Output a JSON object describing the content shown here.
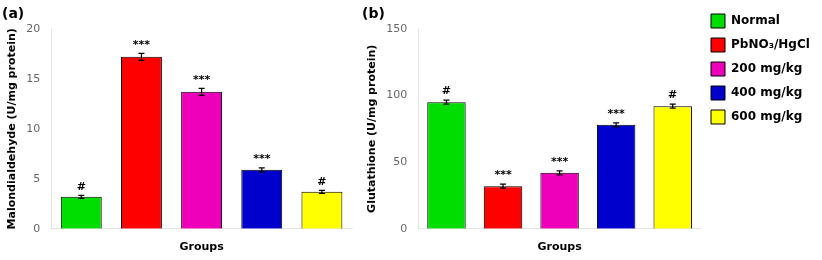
{
  "chart_data": [
    {
      "type": "bar",
      "title": "(a)",
      "xlabel": "Groups",
      "ylabel": "Malondialdehyde (U/mg protein)",
      "categories": [
        "Normal",
        "PbNO₃/HgCl",
        "200 mg/kg",
        "400 mg/kg",
        "600 mg/kg"
      ],
      "values": [
        3.2,
        17.2,
        13.7,
        5.9,
        3.7
      ],
      "errors": [
        0.15,
        0.35,
        0.35,
        0.2,
        0.15
      ],
      "annotations": [
        "#",
        "***",
        "***",
        "***",
        "#"
      ],
      "colors": [
        "#00dd00",
        "#ff0000",
        "#ee00bb",
        "#0000cc",
        "#ffff00"
      ],
      "ylim": [
        0,
        20
      ],
      "yticks": [
        0,
        5,
        10,
        15,
        20
      ],
      "tick_labels": "y",
      "grid": false
    },
    {
      "type": "bar",
      "title": "(b)",
      "xlabel": "Groups",
      "ylabel": "Glutathione (U/mg protein)",
      "categories": [
        "Normal",
        "PbNO₃/HgCl",
        "200 mg/kg",
        "400 mg/kg",
        "600 mg/kg"
      ],
      "values": [
        95,
        32,
        42,
        78,
        92
      ],
      "errors": [
        1.5,
        1.5,
        1.5,
        1.5,
        1.5
      ],
      "annotations": [
        "#",
        "***",
        "***",
        "***",
        "#"
      ],
      "colors": [
        "#00dd00",
        "#ff0000",
        "#ee00bb",
        "#0000cc",
        "#ffff00"
      ],
      "ylim": [
        0,
        150
      ],
      "yticks": [
        0,
        50,
        100,
        150
      ],
      "tick_labels": "y",
      "grid": false,
      "legend": "right"
    }
  ]
}
